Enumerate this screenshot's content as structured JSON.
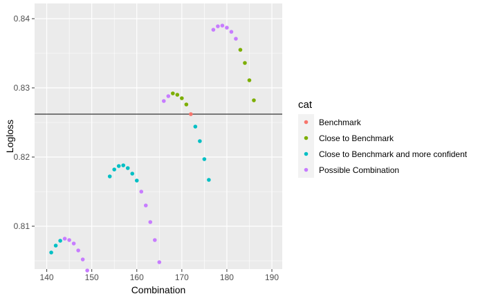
{
  "chart_data": {
    "type": "scatter",
    "title": "",
    "xlabel": "Combination",
    "ylabel": "Logloss",
    "xlim": [
      137.3,
      192.3
    ],
    "ylim": [
      0.8038,
      0.8422
    ],
    "x_ticks": [
      140,
      150,
      160,
      170,
      180,
      190
    ],
    "y_ticks": [
      0.81,
      0.82,
      0.83,
      0.84
    ],
    "x_tick_labels": [
      "140",
      "150",
      "160",
      "170",
      "180",
      "190"
    ],
    "y_tick_labels": [
      "0.81",
      "0.82",
      "0.83",
      "0.84"
    ],
    "grid": true,
    "legend_position": "right",
    "legend_title": "cat",
    "hline": 0.8262,
    "series": [
      {
        "name": "Benchmark",
        "color": "#F8766D",
        "points": [
          [
            172,
            0.8262
          ]
        ]
      },
      {
        "name": "Close to Benchmark",
        "color": "#7CAE00",
        "points": [
          [
            168,
            0.8292
          ],
          [
            169,
            0.829
          ],
          [
            170,
            0.8285
          ],
          [
            171,
            0.8276
          ],
          [
            183,
            0.8355
          ],
          [
            184,
            0.8336
          ],
          [
            185,
            0.8311
          ],
          [
            186,
            0.8282
          ]
        ]
      },
      {
        "name": "Close to Benchmark and more confident",
        "color": "#00BFC4",
        "points": [
          [
            141,
            0.8062
          ],
          [
            142,
            0.8072
          ],
          [
            143,
            0.8079
          ],
          [
            154,
            0.8172
          ],
          [
            155,
            0.8182
          ],
          [
            156,
            0.8187
          ],
          [
            157,
            0.8188
          ],
          [
            158,
            0.8184
          ],
          [
            159,
            0.8176
          ],
          [
            160,
            0.8166
          ],
          [
            173,
            0.8244
          ],
          [
            174,
            0.8223
          ],
          [
            175,
            0.8197
          ],
          [
            176,
            0.8167
          ]
        ]
      },
      {
        "name": "Possible Combination",
        "color": "#C77CFF",
        "points": [
          [
            144,
            0.8082
          ],
          [
            145,
            0.808
          ],
          [
            146,
            0.8075
          ],
          [
            147,
            0.8065
          ],
          [
            148,
            0.8052
          ],
          [
            149,
            0.8036
          ],
          [
            161,
            0.815
          ],
          [
            162,
            0.813
          ],
          [
            163,
            0.8106
          ],
          [
            164,
            0.808
          ],
          [
            165,
            0.8048
          ],
          [
            166,
            0.8281
          ],
          [
            167,
            0.8288
          ],
          [
            177,
            0.8384
          ],
          [
            178,
            0.8389
          ],
          [
            179,
            0.839
          ],
          [
            180,
            0.8387
          ],
          [
            181,
            0.8381
          ],
          [
            182,
            0.8371
          ]
        ]
      }
    ]
  }
}
